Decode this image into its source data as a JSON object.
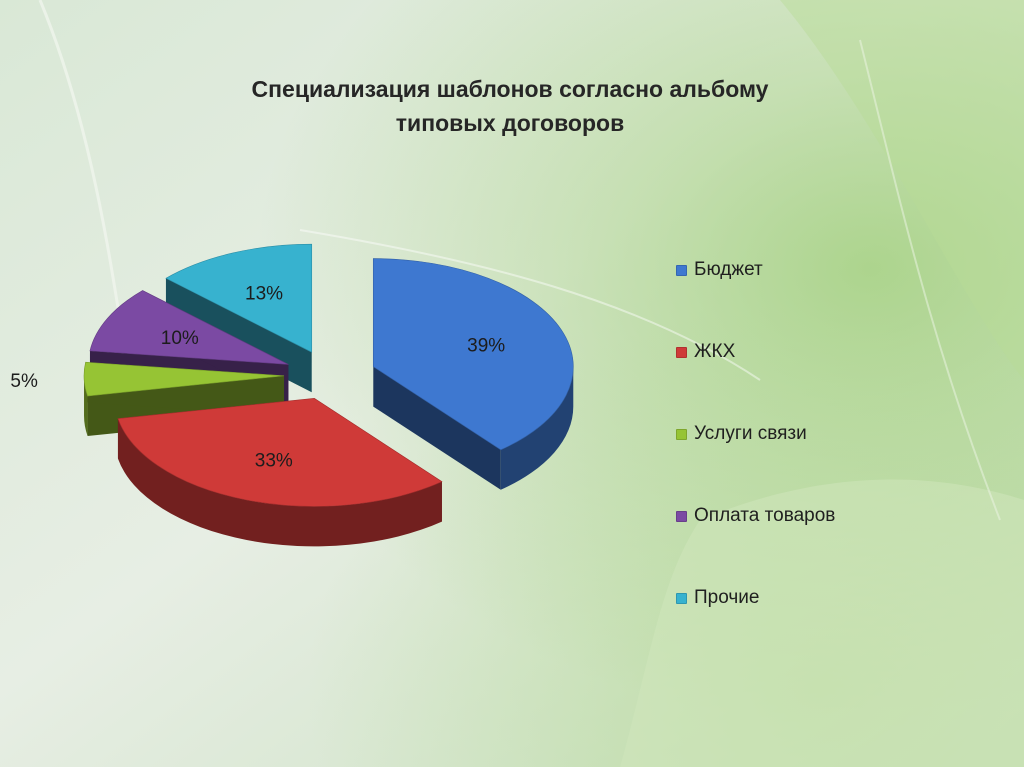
{
  "chart_data": {
    "type": "pie",
    "title_line1": "Специализация шаблонов согласно альбому",
    "title_line2": "типовых договоров",
    "categories": [
      "Бюджет",
      "ЖКХ",
      "Услуги связи",
      "Оплата товаров",
      "Прочие"
    ],
    "values": [
      39,
      33,
      5,
      10,
      13
    ],
    "labels": [
      "39%",
      "33%",
      "5%",
      "10%",
      "13%"
    ],
    "colors": [
      "#3e78d0",
      "#cf3a38",
      "#96c434",
      "#7b4aa3",
      "#37b2cf"
    ],
    "legend_position": "right",
    "exploded": true,
    "perspective": "3d"
  }
}
